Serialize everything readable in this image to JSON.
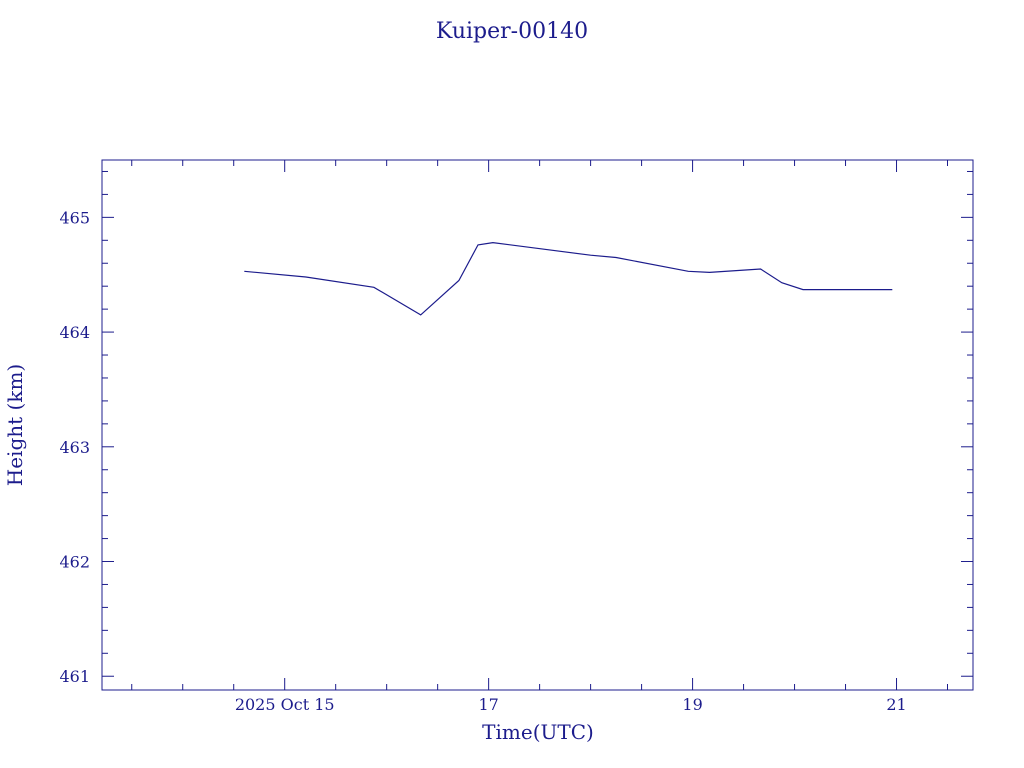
{
  "chart_data": {
    "type": "line",
    "title": "Kuiper-00140",
    "xlabel": "Time(UTC)",
    "ylabel": "Height (km)",
    "x_tick_labels": [
      "2025 Oct 15",
      "17",
      "19",
      "21"
    ],
    "x_tick_dates": [
      "2025-10-15",
      "2025-10-17",
      "2025-10-19",
      "2025-10-21"
    ],
    "y_tick_labels": [
      "461",
      "462",
      "463",
      "464",
      "465"
    ],
    "xlim": [
      "2025-10-13 05:00",
      "2025-10-21 18:00"
    ],
    "ylim": [
      460.88,
      465.5
    ],
    "grid": false,
    "series": [
      {
        "x": [
          "2025-10-14 14:30",
          "2025-10-15 05:00",
          "2025-10-15 21:00",
          "2025-10-16 08:00",
          "2025-10-16 17:00",
          "2025-10-16 21:30",
          "2025-10-17 01:00",
          "2025-10-18 00:00",
          "2025-10-18 06:00",
          "2025-10-18 23:00",
          "2025-10-19 04:00",
          "2025-10-19 16:00",
          "2025-10-19 21:00",
          "2025-10-20 02:00",
          "2025-10-20 23:00"
        ],
        "y": [
          464.53,
          464.48,
          464.39,
          464.15,
          464.45,
          464.76,
          464.78,
          464.67,
          464.65,
          464.53,
          464.52,
          464.55,
          464.43,
          464.37,
          464.37
        ]
      }
    ],
    "colors": {
      "axis": "#1c1c8c",
      "line": "#1c1c8c"
    }
  }
}
